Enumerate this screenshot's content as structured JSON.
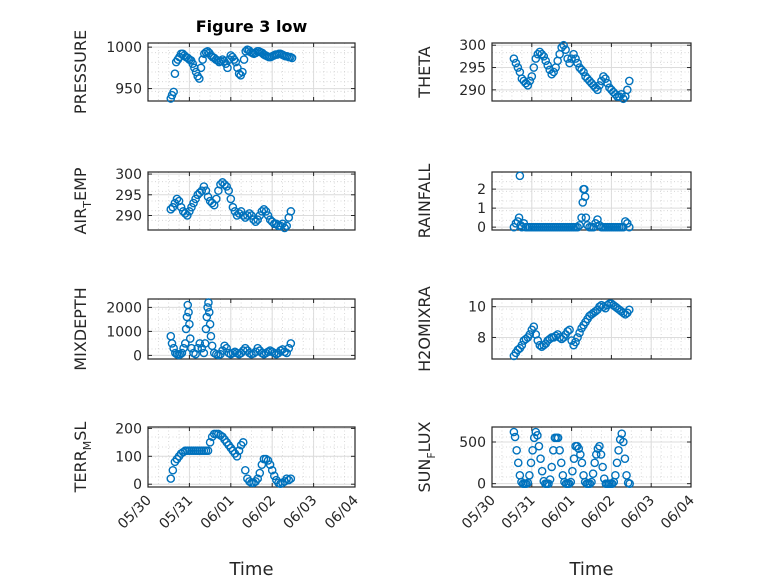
{
  "chart_data": [
    {
      "type": "scatter",
      "title": "Figure 3 low",
      "ylabel": "PRESSURE",
      "yticks": [
        "950",
        "1000"
      ],
      "ylim": [
        935,
        1005
      ],
      "xlim": [
        "05/30",
        "06/04"
      ],
      "x": [
        0.55,
        0.58,
        0.62,
        0.65,
        0.68,
        0.72,
        0.76,
        0.8,
        0.84,
        0.88,
        0.92,
        0.96,
        1,
        1.04,
        1.08,
        1.12,
        1.16,
        1.2,
        1.24,
        1.28,
        1.32,
        1.36,
        1.4,
        1.44,
        1.48,
        1.52,
        1.56,
        1.6,
        1.64,
        1.68,
        1.72,
        1.76,
        1.8,
        1.84,
        1.88,
        1.92,
        1.96,
        2,
        2.04,
        2.08,
        2.12,
        2.16,
        2.2,
        2.24,
        2.28,
        2.32,
        2.36,
        2.4,
        2.44,
        2.48,
        2.52,
        2.56,
        2.6,
        2.64,
        2.68,
        2.72,
        2.76,
        2.8,
        2.84,
        2.88,
        2.92,
        2.96,
        3,
        3.04,
        3.08,
        3.12,
        3.16,
        3.2,
        3.24,
        3.28,
        3.32,
        3.36,
        3.4,
        3.44,
        3.48
      ],
      "y": [
        938,
        942,
        946,
        968,
        982,
        985,
        988,
        992,
        992,
        990,
        988,
        987,
        985,
        984,
        980,
        975,
        970,
        965,
        962,
        975,
        985,
        992,
        994,
        995,
        993,
        990,
        988,
        987,
        985,
        984,
        982,
        983,
        985,
        983,
        980,
        975,
        985,
        990,
        988,
        985,
        982,
        975,
        968,
        966,
        970,
        985,
        995,
        997,
        996,
        994,
        993,
        992,
        993,
        995,
        995,
        994,
        993,
        991,
        990,
        989,
        988,
        988,
        989,
        990,
        991,
        991,
        992,
        992,
        991,
        990,
        989,
        989,
        988,
        988,
        987
      ]
    },
    {
      "type": "scatter",
      "ylabel": "THETA",
      "yticks": [
        "290",
        "295",
        "300"
      ],
      "ylim": [
        287.5,
        300.5
      ],
      "xlim": [
        "05/30",
        "06/04"
      ],
      "x": [
        0.55,
        0.6,
        0.65,
        0.7,
        0.75,
        0.8,
        0.85,
        0.9,
        0.95,
        1,
        1.05,
        1.1,
        1.15,
        1.2,
        1.25,
        1.3,
        1.35,
        1.4,
        1.45,
        1.5,
        1.55,
        1.6,
        1.65,
        1.7,
        1.75,
        1.8,
        1.85,
        1.9,
        1.95,
        2,
        2.05,
        2.1,
        2.15,
        2.2,
        2.25,
        2.3,
        2.35,
        2.4,
        2.45,
        2.5,
        2.55,
        2.6,
        2.65,
        2.7,
        2.75,
        2.8,
        2.85,
        2.9,
        2.95,
        3,
        3.05,
        3.1,
        3.15,
        3.2,
        3.25,
        3.3,
        3.35,
        3.4,
        3.45
      ],
      "y": [
        297,
        296,
        295,
        294,
        292.5,
        292,
        291.5,
        291,
        292,
        293,
        295,
        297,
        298,
        298.5,
        298,
        297.5,
        296.5,
        295.5,
        294.5,
        293.5,
        294,
        295,
        296.5,
        298,
        299.5,
        300,
        299,
        297,
        296,
        297,
        298,
        297,
        296,
        295,
        294.5,
        294,
        293,
        292.5,
        292,
        291.5,
        291,
        290.5,
        290,
        291,
        292,
        293,
        292.5,
        291.5,
        290.5,
        290,
        289.5,
        289,
        288.5,
        288.5,
        289,
        288,
        288.5,
        290,
        292
      ]
    },
    {
      "type": "scatter",
      "ylabel": "AIR_TEMP",
      "yticks": [
        "290",
        "295",
        "300"
      ],
      "ylim": [
        286.5,
        300.5
      ],
      "xlim": [
        "05/30",
        "06/04"
      ],
      "x": [
        0.55,
        0.6,
        0.65,
        0.7,
        0.75,
        0.8,
        0.85,
        0.9,
        0.95,
        1,
        1.05,
        1.1,
        1.15,
        1.2,
        1.25,
        1.3,
        1.35,
        1.4,
        1.45,
        1.5,
        1.55,
        1.6,
        1.65,
        1.7,
        1.75,
        1.8,
        1.85,
        1.9,
        1.95,
        2,
        2.05,
        2.1,
        2.15,
        2.2,
        2.25,
        2.3,
        2.35,
        2.4,
        2.45,
        2.5,
        2.55,
        2.6,
        2.65,
        2.7,
        2.75,
        2.8,
        2.85,
        2.9,
        2.95,
        3,
        3.05,
        3.1,
        3.15,
        3.2,
        3.25,
        3.3,
        3.35,
        3.4,
        3.45
      ],
      "y": [
        291.5,
        292,
        293,
        294,
        293.5,
        292,
        291,
        290.5,
        290,
        291,
        292,
        293,
        294,
        295,
        295.5,
        296,
        297,
        296,
        294.5,
        293.5,
        293,
        292.5,
        294,
        296,
        297.5,
        298,
        297.5,
        297,
        296,
        294,
        292,
        291,
        290,
        290.5,
        291,
        290,
        289.5,
        290,
        290.5,
        290,
        289,
        288.5,
        289,
        290,
        291,
        291.5,
        291,
        290,
        289,
        288.5,
        288,
        288,
        287.5,
        287.5,
        288,
        287,
        287.5,
        289.5,
        291
      ]
    },
    {
      "type": "scatter",
      "ylabel": "RAINFALL",
      "yticks": [
        "0",
        "1",
        "2"
      ],
      "ylim": [
        -0.15,
        2.9
      ],
      "xlim": [
        "05/30",
        "06/04"
      ],
      "x": [
        0.55,
        0.6,
        0.65,
        0.68,
        0.7,
        0.72,
        0.75,
        0.8,
        0.85,
        0.9,
        0.95,
        1,
        1.05,
        1.1,
        1.15,
        1.2,
        1.25,
        1.3,
        1.35,
        1.4,
        1.45,
        1.5,
        1.55,
        1.6,
        1.65,
        1.7,
        1.75,
        1.8,
        1.85,
        1.9,
        1.95,
        2,
        2.05,
        2.1,
        2.15,
        2.2,
        2.25,
        2.28,
        2.3,
        2.32,
        2.34,
        2.36,
        2.4,
        2.45,
        2.5,
        2.55,
        2.6,
        2.65,
        2.7,
        2.75,
        2.8,
        2.85,
        2.9,
        2.95,
        3,
        3.05,
        3.1,
        3.15,
        3.2,
        3.25,
        3.3,
        3.35,
        3.4,
        3.45
      ],
      "y": [
        0,
        0.2,
        0.3,
        0.5,
        2.7,
        0.1,
        0,
        0.2,
        0,
        0,
        0,
        0,
        0,
        0,
        0,
        0,
        0,
        0,
        0,
        0,
        0,
        0,
        0,
        0,
        0,
        0,
        0,
        0,
        0,
        0,
        0,
        0,
        0,
        0,
        0,
        0.1,
        0.5,
        1.3,
        2,
        2,
        1.6,
        0.5,
        0.1,
        0,
        0,
        0,
        0.2,
        0.4,
        0.1,
        0,
        0,
        0,
        0,
        0,
        0,
        0,
        0,
        0,
        0,
        0,
        0,
        0.3,
        0.2,
        0
      ]
    },
    {
      "type": "scatter",
      "ylabel": "MIXDEPTH",
      "yticks": [
        "0",
        "1000",
        "2000"
      ],
      "ylim": [
        -150,
        2350
      ],
      "xlim": [
        "05/30",
        "06/04"
      ],
      "x": [
        0.55,
        0.58,
        0.62,
        0.66,
        0.7,
        0.74,
        0.78,
        0.82,
        0.86,
        0.9,
        0.92,
        0.94,
        0.96,
        0.98,
        1,
        1.02,
        1.05,
        1.1,
        1.15,
        1.2,
        1.25,
        1.3,
        1.35,
        1.38,
        1.4,
        1.42,
        1.44,
        1.46,
        1.48,
        1.5,
        1.52,
        1.55,
        1.6,
        1.65,
        1.7,
        1.75,
        1.8,
        1.85,
        1.9,
        1.95,
        2,
        2.05,
        2.1,
        2.15,
        2.2,
        2.25,
        2.3,
        2.35,
        2.4,
        2.45,
        2.5,
        2.55,
        2.6,
        2.65,
        2.7,
        2.75,
        2.8,
        2.85,
        2.9,
        2.95,
        3,
        3.05,
        3.1,
        3.15,
        3.2,
        3.25,
        3.3,
        3.35,
        3.4,
        3.45
      ],
      "y": [
        800,
        500,
        300,
        100,
        50,
        20,
        50,
        100,
        300,
        500,
        1100,
        1600,
        2100,
        1800,
        1300,
        700,
        300,
        100,
        50,
        300,
        500,
        300,
        100,
        500,
        1100,
        1600,
        2000,
        2200,
        1800,
        1300,
        800,
        400,
        100,
        50,
        20,
        50,
        200,
        400,
        300,
        100,
        50,
        100,
        150,
        100,
        50,
        100,
        200,
        300,
        200,
        100,
        50,
        80,
        150,
        300,
        200,
        100,
        50,
        100,
        150,
        200,
        150,
        100,
        50,
        100,
        200,
        250,
        150,
        100,
        300,
        500
      ]
    },
    {
      "type": "scatter",
      "ylabel": "H2OMIXRA",
      "yticks": [
        "8",
        "10"
      ],
      "ylim": [
        6.6,
        10.5
      ],
      "xlim": [
        "05/30",
        "06/04"
      ],
      "x": [
        0.55,
        0.6,
        0.65,
        0.7,
        0.75,
        0.8,
        0.85,
        0.9,
        0.95,
        1,
        1.05,
        1.1,
        1.15,
        1.2,
        1.25,
        1.3,
        1.35,
        1.4,
        1.45,
        1.5,
        1.55,
        1.6,
        1.65,
        1.7,
        1.75,
        1.8,
        1.85,
        1.9,
        1.95,
        2,
        2.05,
        2.1,
        2.15,
        2.2,
        2.25,
        2.3,
        2.35,
        2.4,
        2.45,
        2.5,
        2.55,
        2.6,
        2.65,
        2.7,
        2.75,
        2.8,
        2.85,
        2.9,
        2.95,
        3,
        3.05,
        3.1,
        3.15,
        3.2,
        3.25,
        3.3,
        3.35,
        3.4,
        3.45
      ],
      "y": [
        6.8,
        7,
        7.2,
        7.3,
        7.5,
        7.8,
        7.9,
        8,
        8.2,
        8.5,
        8.7,
        8.2,
        7.8,
        7.5,
        7.4,
        7.5,
        7.6,
        7.8,
        7.9,
        8,
        8,
        8.1,
        8.2,
        8,
        7.9,
        8,
        8.2,
        8.4,
        8.5,
        7.8,
        7.5,
        7.7,
        8,
        8.3,
        8.6,
        8.8,
        9,
        9.2,
        9.4,
        9.5,
        9.6,
        9.7,
        9.8,
        10,
        10.1,
        10,
        9.9,
        10.1,
        10.2,
        10.2,
        10.1,
        10,
        9.9,
        9.8,
        9.7,
        9.6,
        9.5,
        9.6,
        9.8
      ]
    },
    {
      "type": "scatter",
      "ylabel": "TERR_MSL",
      "yticks": [
        "0",
        "100",
        "200"
      ],
      "ylim": [
        -10,
        205
      ],
      "xlim": [
        "05/30",
        "06/04"
      ],
      "x": [
        0.55,
        0.6,
        0.65,
        0.7,
        0.75,
        0.8,
        0.85,
        0.9,
        0.95,
        1,
        1.05,
        1.1,
        1.15,
        1.2,
        1.25,
        1.3,
        1.35,
        1.4,
        1.45,
        1.5,
        1.55,
        1.6,
        1.65,
        1.7,
        1.75,
        1.8,
        1.85,
        1.9,
        1.95,
        2,
        2.05,
        2.1,
        2.15,
        2.2,
        2.25,
        2.3,
        2.35,
        2.4,
        2.45,
        2.5,
        2.55,
        2.6,
        2.65,
        2.7,
        2.75,
        2.8,
        2.85,
        2.9,
        2.95,
        3,
        3.05,
        3.1,
        3.15,
        3.2,
        3.25,
        3.3,
        3.35,
        3.4,
        3.45
      ],
      "y": [
        20,
        50,
        80,
        90,
        100,
        110,
        115,
        120,
        120,
        120,
        120,
        120,
        120,
        120,
        120,
        120,
        120,
        120,
        120,
        150,
        170,
        180,
        180,
        180,
        175,
        170,
        160,
        150,
        140,
        130,
        120,
        110,
        100,
        120,
        140,
        150,
        50,
        20,
        10,
        5,
        5,
        10,
        20,
        40,
        70,
        90,
        90,
        85,
        70,
        50,
        30,
        15,
        5,
        2,
        5,
        10,
        20,
        15,
        20
      ]
    },
    {
      "type": "scatter",
      "ylabel": "SUN_FLUX",
      "yticks": [
        "0",
        "500"
      ],
      "ylim": [
        -40,
        680
      ],
      "xlim": [
        "05/30",
        "06/04"
      ],
      "xticks": [
        "05/30",
        "05/31",
        "06/01",
        "06/02",
        "06/03",
        "06/04"
      ],
      "x": [
        0.55,
        0.58,
        0.62,
        0.66,
        0.7,
        0.74,
        0.78,
        0.82,
        0.86,
        0.9,
        0.94,
        0.98,
        1.02,
        1.06,
        1.1,
        1.14,
        1.18,
        1.22,
        1.26,
        1.3,
        1.34,
        1.38,
        1.42,
        1.46,
        1.5,
        1.54,
        1.58,
        1.62,
        1.66,
        1.7,
        1.74,
        1.78,
        1.82,
        1.86,
        1.9,
        1.94,
        1.98,
        2.02,
        2.06,
        2.1,
        2.14,
        2.18,
        2.22,
        2.26,
        2.3,
        2.34,
        2.38,
        2.42,
        2.46,
        2.5,
        2.54,
        2.58,
        2.62,
        2.66,
        2.7,
        2.74,
        2.78,
        2.82,
        2.86,
        2.9,
        2.94,
        2.98,
        3.02,
        3.06,
        3.1,
        3.14,
        3.18,
        3.22,
        3.26,
        3.3,
        3.34,
        3.38,
        3.42,
        3.46
      ],
      "y": [
        620,
        560,
        400,
        250,
        100,
        20,
        0,
        0,
        0,
        10,
        100,
        250,
        400,
        550,
        620,
        580,
        450,
        300,
        150,
        30,
        0,
        0,
        0,
        50,
        200,
        400,
        550,
        550,
        550,
        400,
        250,
        100,
        20,
        0,
        0,
        0,
        20,
        150,
        300,
        450,
        450,
        420,
        350,
        250,
        100,
        20,
        0,
        0,
        0,
        20,
        120,
        250,
        350,
        420,
        450,
        350,
        200,
        60,
        0,
        0,
        0,
        0,
        0,
        20,
        100,
        250,
        400,
        530,
        600,
        500,
        300,
        100,
        10,
        0
      ]
    }
  ],
  "shared": {
    "xlabel": "Time",
    "xticks": [
      "05/30",
      "05/31",
      "06/01",
      "06/02",
      "06/03",
      "06/04"
    ],
    "marker_color": "#0072BD",
    "grid": true,
    "minor_grid": true
  }
}
